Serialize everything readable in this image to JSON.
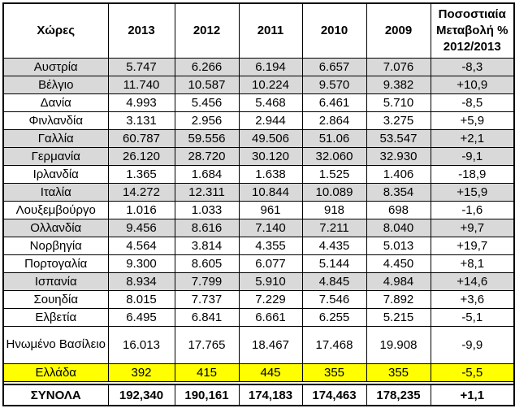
{
  "table": {
    "headers": [
      "Χώρες",
      "2013",
      "2012",
      "2011",
      "2010",
      "2009",
      "Ποσοστιαία Μεταβολή % 2012/2013"
    ],
    "rows": [
      {
        "country": "Αυστρία",
        "v2013": "5.747",
        "v2012": "6.266",
        "v2011": "6.194",
        "v2010": "6.657",
        "v2009": "7.076",
        "change": "-8,3",
        "style": "shade"
      },
      {
        "country": "Βέλγιο",
        "v2013": "11.740",
        "v2012": "10.587",
        "v2011": "10.224",
        "v2010": "9.570",
        "v2009": "9.382",
        "change": "+10,9",
        "style": "shade"
      },
      {
        "country": "Δανία",
        "v2013": "4.993",
        "v2012": "5.456",
        "v2011": "5.468",
        "v2010": "6.461",
        "v2009": "5.710",
        "change": "-8,5",
        "style": "plain"
      },
      {
        "country": "Φινλανδία",
        "v2013": "3.131",
        "v2012": "2.956",
        "v2011": "2.944",
        "v2010": "2.864",
        "v2009": "3.275",
        "change": "+5,9",
        "style": "plain"
      },
      {
        "country": "Γαλλία",
        "v2013": "60.787",
        "v2012": "59.556",
        "v2011": "49.506",
        "v2010": "51.06",
        "v2009": "53.547",
        "change": "+2,1",
        "style": "shade"
      },
      {
        "country": "Γερμανία",
        "v2013": "26.120",
        "v2012": "28.720",
        "v2011": "30.120",
        "v2010": "32.060",
        "v2009": "32.930",
        "change": "-9,1",
        "style": "shade"
      },
      {
        "country": "Ιρλανδία",
        "v2013": "1.365",
        "v2012": "1.684",
        "v2011": "1.638",
        "v2010": "1.525",
        "v2009": "1.406",
        "change": "-18,9",
        "style": "plain"
      },
      {
        "country": "Ιταλία",
        "v2013": "14.272",
        "v2012": "12.311",
        "v2011": "10.844",
        "v2010": "10.089",
        "v2009": "8.354",
        "change": "+15,9",
        "style": "shade"
      },
      {
        "country": "Λουξεμβούργο",
        "v2013": "1.016",
        "v2012": "1.033",
        "v2011": "961",
        "v2010": "918",
        "v2009": "698",
        "change": "-1,6",
        "style": "plain"
      },
      {
        "country": "Ολλανδία",
        "v2013": "9.456",
        "v2012": "8.616",
        "v2011": "7.140",
        "v2010": "7.211",
        "v2009": "8.040",
        "change": "+9,7",
        "style": "shade"
      },
      {
        "country": "Νορβηγία",
        "v2013": "4.564",
        "v2012": "3.814",
        "v2011": "4.355",
        "v2010": "4.435",
        "v2009": "5.013",
        "change": "+19,7",
        "style": "plain"
      },
      {
        "country": "Πορτογαλία",
        "v2013": "9.300",
        "v2012": "8.605",
        "v2011": "6.077",
        "v2010": "5.144",
        "v2009": "4.450",
        "change": "+8,1",
        "style": "plain"
      },
      {
        "country": "Ισπανία",
        "v2013": "8.934",
        "v2012": "7.799",
        "v2011": "5.910",
        "v2010": "4.845",
        "v2009": "4.984",
        "change": "+14,6",
        "style": "shade"
      },
      {
        "country": "Σουηδία",
        "v2013": "8.015",
        "v2012": "7.737",
        "v2011": "7.229",
        "v2010": "7.546",
        "v2009": "7.892",
        "change": "+3,6",
        "style": "plain"
      },
      {
        "country": "Ελβετία",
        "v2013": "6.495",
        "v2012": "6.841",
        "v2011": "6.661",
        "v2010": "6.255",
        "v2009": "5.215",
        "change": "-5,1",
        "style": "plain"
      },
      {
        "country": "Ηνωμένο Βασίλειο",
        "v2013": "16.013",
        "v2012": "17.765",
        "v2011": "18.467",
        "v2010": "17.468",
        "v2009": "19.908",
        "change": "-9,9",
        "style": "tall"
      },
      {
        "country": "Ελλάδα",
        "v2013": "392",
        "v2012": "415",
        "v2011": "445",
        "v2010": "355",
        "v2009": "355",
        "change": "-5,5",
        "style": "highlight"
      }
    ],
    "total": {
      "label": "ΣΥΝΟΛΑ",
      "v2013": "192,340",
      "v2012": "190,161",
      "v2011": "174,183",
      "v2010": "174,463",
      "v2009": "178,235",
      "change": "+1,1"
    }
  },
  "colors": {
    "shade": "#d9d9d9",
    "highlight": "#ffff00"
  }
}
